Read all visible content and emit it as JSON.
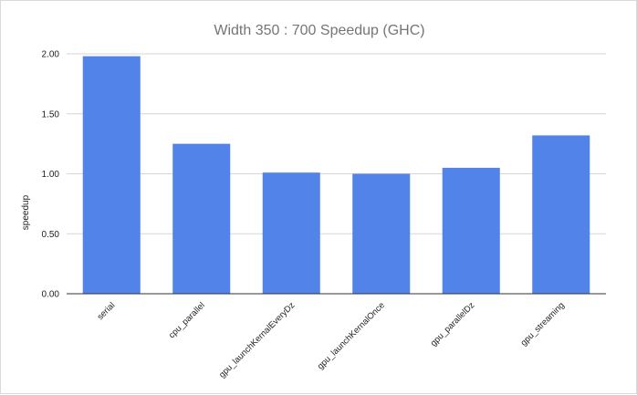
{
  "chart_data": {
    "type": "bar",
    "title": "Width 350 : 700 Speedup (GHC)",
    "xlabel": "",
    "ylabel": "speedup",
    "categories": [
      "serial",
      "cpu_parallel",
      "gpu_launchKernalEveryDz",
      "gpu_launchKernalOnce",
      "gpu_parallelDz",
      "gpu_streaming"
    ],
    "values": [
      1.98,
      1.25,
      1.01,
      1.0,
      1.05,
      1.32
    ],
    "ylim": [
      0,
      2.0
    ],
    "yticks": [
      "0.00",
      "0.50",
      "1.00",
      "1.50",
      "2.00"
    ],
    "grid": true,
    "legend": "none",
    "colors": {
      "bar": "#5283e8",
      "grid": "#d6d6d6",
      "baseline": "#333333"
    }
  }
}
